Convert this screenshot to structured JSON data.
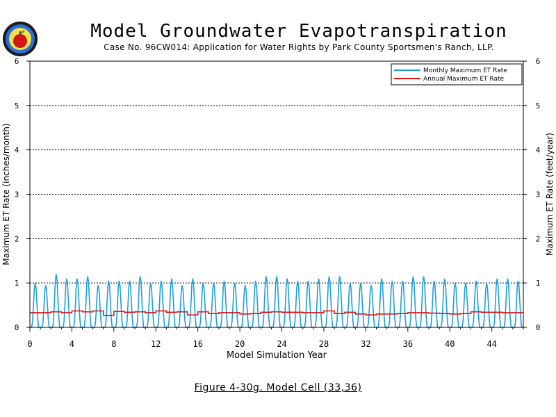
{
  "header": {
    "title": "Model Groundwater Evapotranspiration",
    "subtitle": "Case No. 96CW014: Application for Water Rights by Park County Sportsmen's Ranch, LLP."
  },
  "caption": "Figure 4-30g.  Model Cell (33,36)",
  "colors": {
    "monthly": "#1a9fe0",
    "annual": "#e01010",
    "grid": "#000000"
  },
  "chart_data": {
    "type": "line",
    "title": "Model Groundwater Evapotranspiration",
    "xlabel": "Model Simulation Year",
    "ylabel_left": "Maximum ET Rate (inches/month)",
    "ylabel_right": "Maximum ET Rate (feet/year)",
    "xlim": [
      0,
      47
    ],
    "ylim_left": [
      0,
      6
    ],
    "ylim_right": [
      0,
      6
    ],
    "x_ticks": [
      "0",
      "4",
      "8",
      "12",
      "16",
      "20",
      "24",
      "28",
      "32",
      "36",
      "40",
      "44"
    ],
    "y_ticks": [
      "0",
      "1",
      "2",
      "3",
      "4",
      "5",
      "6"
    ],
    "grid": "dashed horizontal",
    "legend_position": "top-right",
    "series": [
      {
        "name": "Monthly Maximum ET Rate",
        "x_unit": "year",
        "annual_monthly_peaks": [
          1.0,
          0.95,
          1.2,
          1.1,
          1.1,
          1.15,
          0.95,
          1.05,
          1.05,
          1.05,
          1.15,
          1.0,
          1.05,
          1.1,
          0.95,
          1.1,
          1.0,
          1.0,
          1.05,
          1.0,
          0.95,
          1.05,
          1.15,
          1.15,
          1.1,
          1.05,
          1.05,
          1.1,
          1.15,
          1.15,
          1.0,
          1.0,
          0.95,
          1.1,
          1.05,
          1.05,
          1.15,
          1.15,
          1.05,
          1.1,
          1.0,
          1.0,
          1.05,
          1.0,
          1.1,
          1.1,
          1.05
        ]
      },
      {
        "name": "Annual Maximum ET Rate",
        "x_unit": "year",
        "values": [
          0.33,
          0.33,
          0.35,
          0.33,
          0.37,
          0.35,
          0.37,
          0.27,
          0.36,
          0.34,
          0.35,
          0.33,
          0.37,
          0.34,
          0.35,
          0.28,
          0.35,
          0.31,
          0.33,
          0.33,
          0.3,
          0.31,
          0.34,
          0.35,
          0.34,
          0.34,
          0.33,
          0.33,
          0.37,
          0.31,
          0.34,
          0.3,
          0.28,
          0.3,
          0.3,
          0.31,
          0.33,
          0.33,
          0.32,
          0.31,
          0.3,
          0.31,
          0.35,
          0.34,
          0.34,
          0.33,
          0.33
        ]
      }
    ]
  }
}
